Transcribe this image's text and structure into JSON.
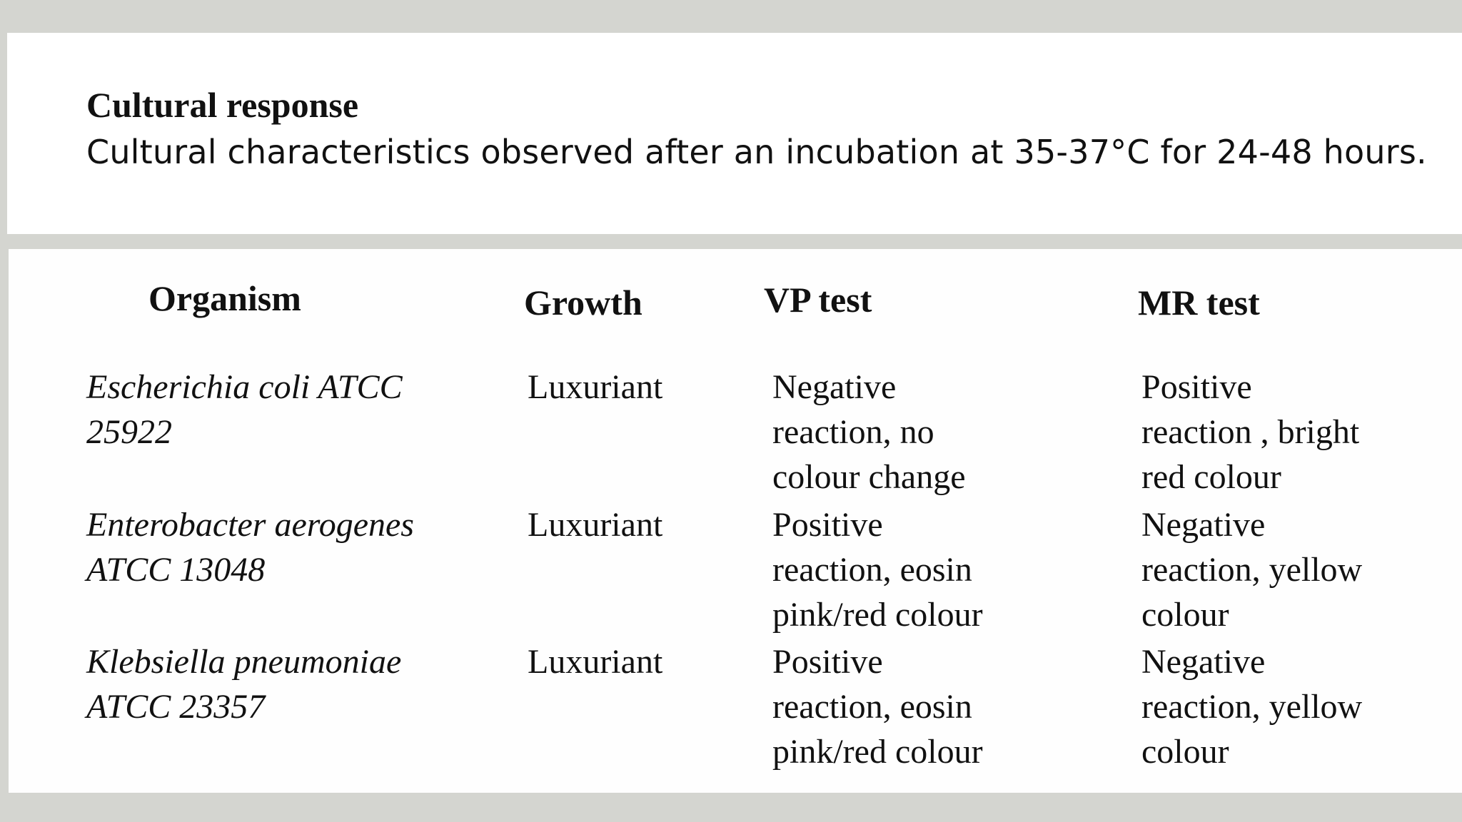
{
  "header": {
    "title": "Cultural response",
    "subtitle": "Cultural characteristics observed after an incubation at 35-37°C for 24-48 hours."
  },
  "table": {
    "columns": [
      "Organism",
      "Growth",
      "VP test",
      "MR test"
    ],
    "rows": [
      {
        "organism": [
          "Escherichia coli ATCC",
          "25922"
        ],
        "growth": "Luxuriant",
        "vp": [
          "Negative",
          "reaction, no",
          "colour change"
        ],
        "mr": [
          "Positive",
          "reaction , bright",
          "red colour"
        ]
      },
      {
        "organism": [
          "Enterobacter aerogenes",
          "ATCC 13048"
        ],
        "growth": "Luxuriant",
        "vp": [
          "Positive",
          "reaction, eosin",
          "pink/red colour"
        ],
        "mr": [
          "Negative",
          "reaction, yellow",
          "colour"
        ]
      },
      {
        "organism": [
          "Klebsiella pneumoniae",
          "ATCC 23357"
        ],
        "growth": "Luxuriant",
        "vp": [
          "Positive",
          "reaction, eosin",
          "pink/red colour"
        ],
        "mr": [
          "Negative",
          "reaction, yellow",
          "colour"
        ]
      }
    ]
  }
}
